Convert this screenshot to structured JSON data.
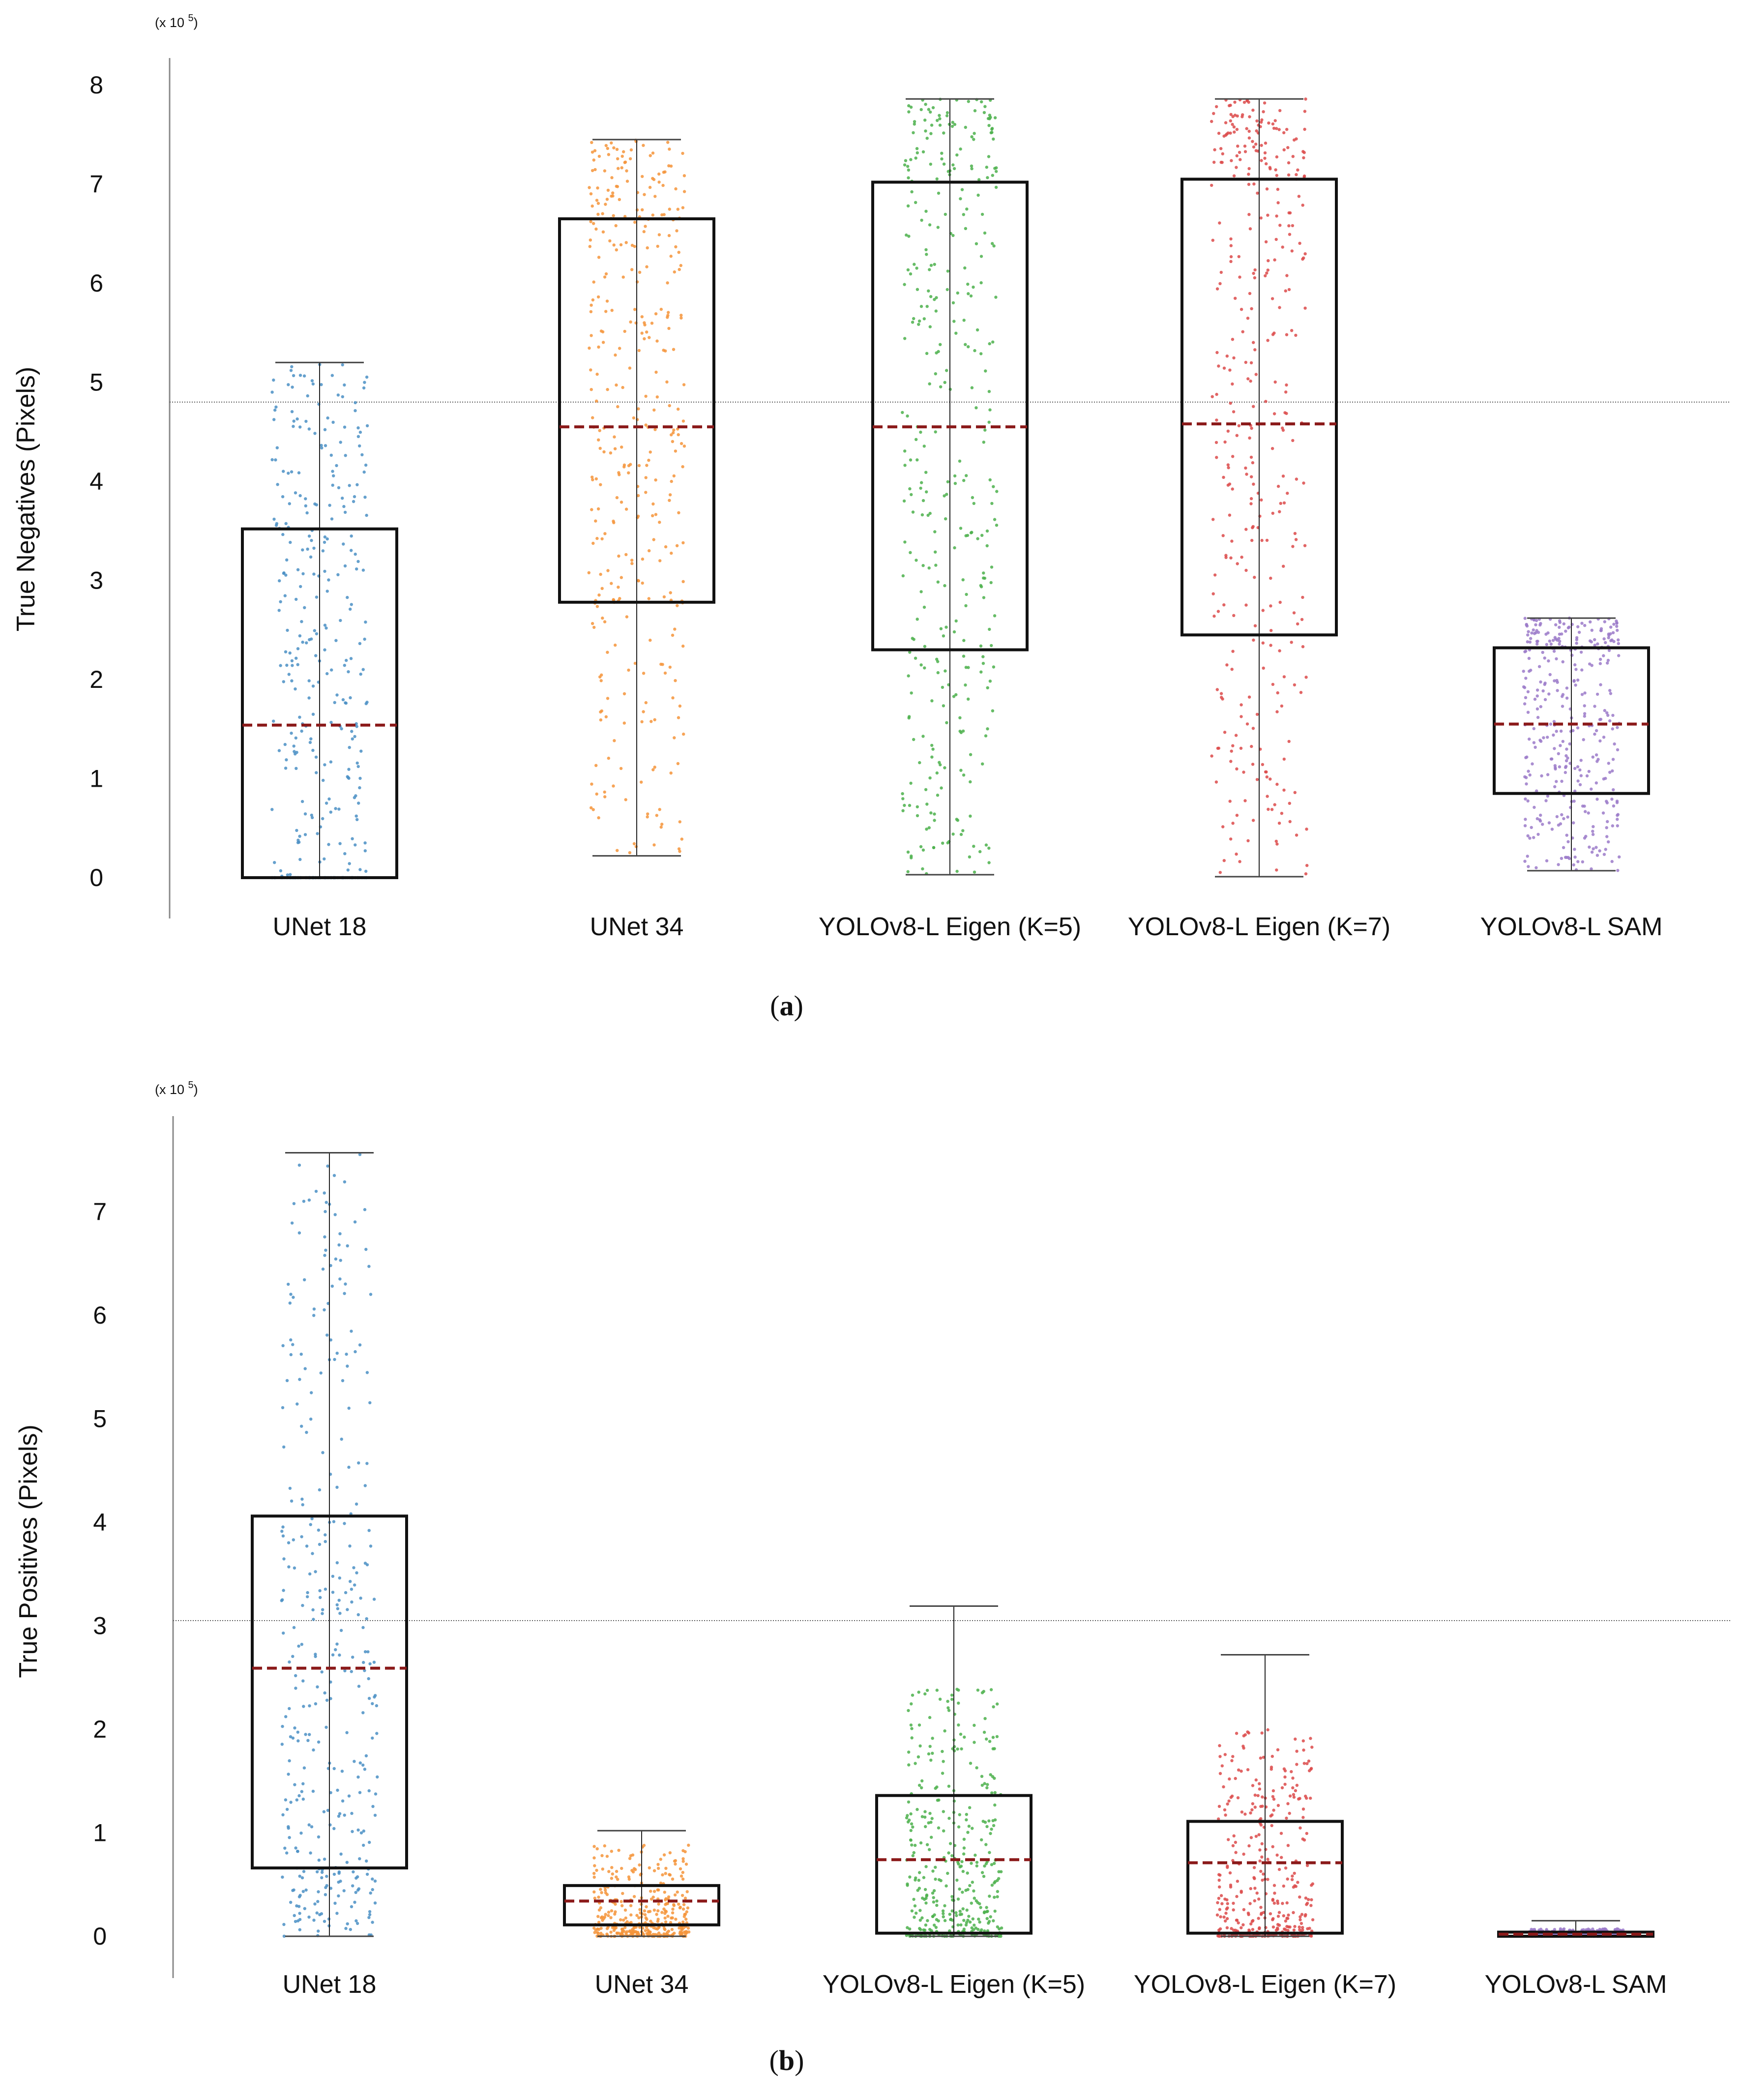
{
  "chart_data": [
    {
      "type": "box",
      "panel": "a",
      "ylabel": "True Negatives (Pixels)",
      "multiplier": "(x 10",
      "multiplier_exp": "5",
      "multiplier_close": ")",
      "ylim": [
        -0.3,
        8.3
      ],
      "yticks": [
        0,
        1,
        2,
        3,
        4,
        5,
        6,
        7,
        8
      ],
      "reference_line": 4.8,
      "categories": [
        "UNet 18",
        "UNet 34",
        "YOLOv8-L Eigen (K=5)",
        "YOLOv8-L Eigen (K=7)",
        "YOLOv8-L SAM"
      ],
      "colors": [
        "#4a8fc4",
        "#f4943a",
        "#4bb04b",
        "#dc4a4a",
        "#9b7ac9"
      ],
      "boxes": [
        {
          "whisker_low": 0.0,
          "q1": 0.0,
          "median": 1.54,
          "q3": 3.52,
          "whisker_high": 5.2
        },
        {
          "whisker_low": 0.22,
          "q1": 2.78,
          "median": 4.55,
          "q3": 6.65,
          "whisker_high": 7.45
        },
        {
          "whisker_low": 0.03,
          "q1": 2.3,
          "median": 4.55,
          "q3": 7.02,
          "whisker_high": 7.86
        },
        {
          "whisker_low": 0.01,
          "q1": 2.45,
          "median": 4.58,
          "q3": 7.05,
          "whisker_high": 7.86
        },
        {
          "whisker_low": 0.07,
          "q1": 0.85,
          "median": 1.55,
          "q3": 2.32,
          "whisker_high": 2.62
        }
      ],
      "subplot_label": "a"
    },
    {
      "type": "box",
      "panel": "b",
      "ylabel": "True Positives (Pixels)",
      "multiplier": "(x 10",
      "multiplier_exp": "5",
      "multiplier_close": ")",
      "ylim": [
        -0.3,
        7.9
      ],
      "yticks": [
        0,
        1,
        2,
        3,
        4,
        5,
        6,
        7
      ],
      "reference_line": 3.05,
      "categories": [
        "UNet 18",
        "UNet 34",
        "YOLOv8-L Eigen (K=5)",
        "YOLOv8-L Eigen (K=7)",
        "YOLOv8-L SAM"
      ],
      "colors": [
        "#4a8fc4",
        "#f4943a",
        "#4bb04b",
        "#dc4a4a",
        "#9b7ac9"
      ],
      "boxes": [
        {
          "whisker_low": 0.0,
          "q1": 0.66,
          "median": 2.59,
          "q3": 4.06,
          "whisker_high": 7.57
        },
        {
          "whisker_low": 0.0,
          "q1": 0.11,
          "median": 0.34,
          "q3": 0.49,
          "whisker_high": 1.02
        },
        {
          "whisker_low": 0.0,
          "q1": 0.03,
          "median": 0.74,
          "q3": 1.36,
          "whisker_high": 3.19
        },
        {
          "whisker_low": 0.0,
          "q1": 0.03,
          "median": 0.71,
          "q3": 1.11,
          "whisker_high": 2.72
        },
        {
          "whisker_low": 0.0,
          "q1": 0.0,
          "median": 0.02,
          "q3": 0.04,
          "whisker_high": 0.15
        }
      ],
      "subplot_label": "b"
    }
  ]
}
